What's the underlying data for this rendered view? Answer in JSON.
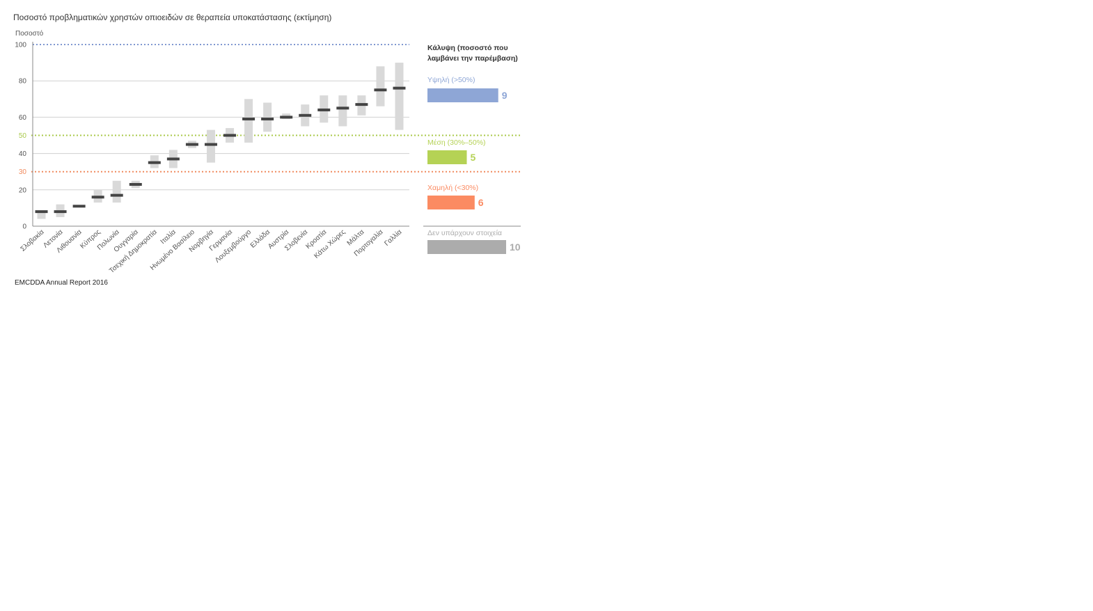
{
  "title": "Ποσοστό προβληματικών χρηστών οπιοειδών σε θεραπεία υποκατάστασης (εκτίμηση)",
  "source": "EMCDDA Annual Report 2016",
  "chart_data": {
    "type": "bar",
    "title": "Ποσοστό προβληματικών χρηστών οπιοειδών σε θεραπεία υποκατάστασης (εκτίμηση)",
    "ylabel": "Ποσοστό",
    "ylim": [
      0,
      100
    ],
    "yticks": [
      "0",
      "20",
      "40",
      "60",
      "80",
      "100"
    ],
    "thresholds": [
      {
        "value": 100,
        "label": "",
        "color": "#7f97d0"
      },
      {
        "value": 50,
        "label": "50",
        "color": "#a9c94a"
      },
      {
        "value": 30,
        "label": "30",
        "color": "#f08a5d"
      }
    ],
    "categories": [
      "Σλοβακία",
      "Λετονία",
      "Λιθουανία",
      "Κύπρος",
      "Πολωνία",
      "Ουγγαρία",
      "Τσεχική Δημοκρατία",
      "Ιταλία",
      "Ηνωμένο Βασίλειο",
      "Νορβηγία",
      "Γερμανία",
      "Λουξεμβούργο",
      "Ελλάδα",
      "Αυστρία",
      "Σλοβενία",
      "Κροατία",
      "Κάτω Χώρες",
      "Μάλτα",
      "Πορτογαλία",
      "Γαλλία"
    ],
    "estimate": [
      8,
      8,
      11,
      16,
      17,
      23,
      35,
      37,
      45,
      45,
      50,
      59,
      59,
      60,
      61,
      64,
      65,
      67,
      75,
      76
    ],
    "range_low": [
      4,
      5,
      11,
      13,
      13,
      21,
      32,
      32,
      43,
      35,
      46,
      46,
      52,
      59,
      55,
      57,
      55,
      61,
      66,
      53
    ],
    "range_high": [
      8,
      12,
      11,
      20,
      25,
      25,
      39,
      42,
      47,
      53,
      54,
      70,
      68,
      62,
      67,
      72,
      72,
      72,
      88,
      90
    ]
  },
  "legend": {
    "heading": "Κάλυψη (ποσοστό που λαμβάνει την παρέμβαση)",
    "heading_line1": "Κάλυψη (ποσοστό που",
    "heading_line2": "λαμβάνει την παρέμβαση)",
    "items": [
      {
        "label": "Υψηλή (>50%)",
        "count": 9,
        "color": "#8ea6d6"
      },
      {
        "label": "Μέση (30%–50%)",
        "count": 5,
        "color": "#b5d255"
      },
      {
        "label": "Χαμηλή (<30%)",
        "count": 6,
        "color": "#fb8b62"
      },
      {
        "label": "Δεν υπάρχουν στοιχεία",
        "count": 10,
        "color": "#acacac"
      }
    ]
  },
  "colors": {
    "range_bar": "#d9d9d9",
    "estimate_mark": "#444444",
    "gridline": "#d0d0d0",
    "axis": "#888888"
  }
}
